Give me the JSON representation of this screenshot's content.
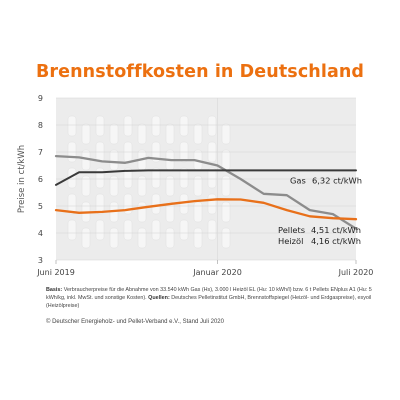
{
  "title": "Brennstoffkosten in Deutschland",
  "colors": {
    "gas": "#3a3a3a",
    "pellets": "#e8701a",
    "heizoel": "#8c8c8c",
    "plot_background": "#ececec",
    "title": "#ec7010"
  },
  "chart_data": {
    "type": "line",
    "title": "Brennstoffkosten in Deutschland",
    "ylabel": "Preise in ct/kWh",
    "xlabel": "",
    "ylim": [
      3,
      9
    ],
    "yticks": [
      3,
      4,
      5,
      6,
      7,
      8,
      9
    ],
    "x": [
      "Jun 2019",
      "Jul 2019",
      "Aug 2019",
      "Sep 2019",
      "Okt 2019",
      "Nov 2019",
      "Dez 2019",
      "Jan 2020",
      "Feb 2020",
      "Mär 2020",
      "Apr 2020",
      "Mai 2020",
      "Jun 2020",
      "Jul 2020"
    ],
    "xtick_labels": [
      "Juni 2019",
      "Januar 2020",
      "Juli 2020"
    ],
    "series": [
      {
        "name": "Gas",
        "end_label": "6,32 ct/kWh",
        "values": [
          5.78,
          6.25,
          6.25,
          6.3,
          6.32,
          6.32,
          6.32,
          6.32,
          6.32,
          6.32,
          6.32,
          6.32,
          6.32,
          6.32
        ]
      },
      {
        "name": "Pellets",
        "end_label": "4,51 ct/kWh",
        "values": [
          4.85,
          4.75,
          4.78,
          4.85,
          4.97,
          5.08,
          5.18,
          5.25,
          5.24,
          5.12,
          4.85,
          4.62,
          4.55,
          4.51
        ]
      },
      {
        "name": "Heizöl",
        "end_label": "4,16 ct/kWh",
        "values": [
          6.85,
          6.8,
          6.65,
          6.6,
          6.78,
          6.7,
          6.7,
          6.5,
          6.0,
          5.45,
          5.4,
          4.85,
          4.7,
          4.16
        ]
      }
    ],
    "grid": true,
    "legend": "inline labels at right end of lines"
  },
  "footnote": {
    "basis_label": "Basis:",
    "basis_text": "Verbraucherpreise für die Abnahme von 33.540 kWh Gas (Hs), 3.000 l Heizöl EL (Hu: 10 kWh/l) bzw. 6 t Pellets ENplus A1 (Hu: 5 kWh/kg, inkl. MwSt. und sonstige Kosten).",
    "sources_label": "Quellen:",
    "sources_text": "Deutsches Pelletinstitut GmbH, Brennstoffspiegel (Heizöl- und Erdgaspreise), esyoil (Heizölpreise)"
  },
  "copyright": "© Deutscher Energieholz- und Pellet-Verband e.V., Stand Juli 2020"
}
